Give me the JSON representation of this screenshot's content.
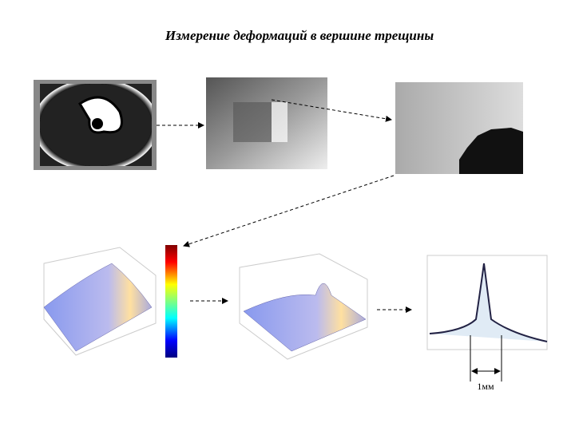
{
  "header": {
    "title": "Измерение деформаций в вершине трещины"
  },
  "figure": {
    "scale_label": "1мм"
  }
}
